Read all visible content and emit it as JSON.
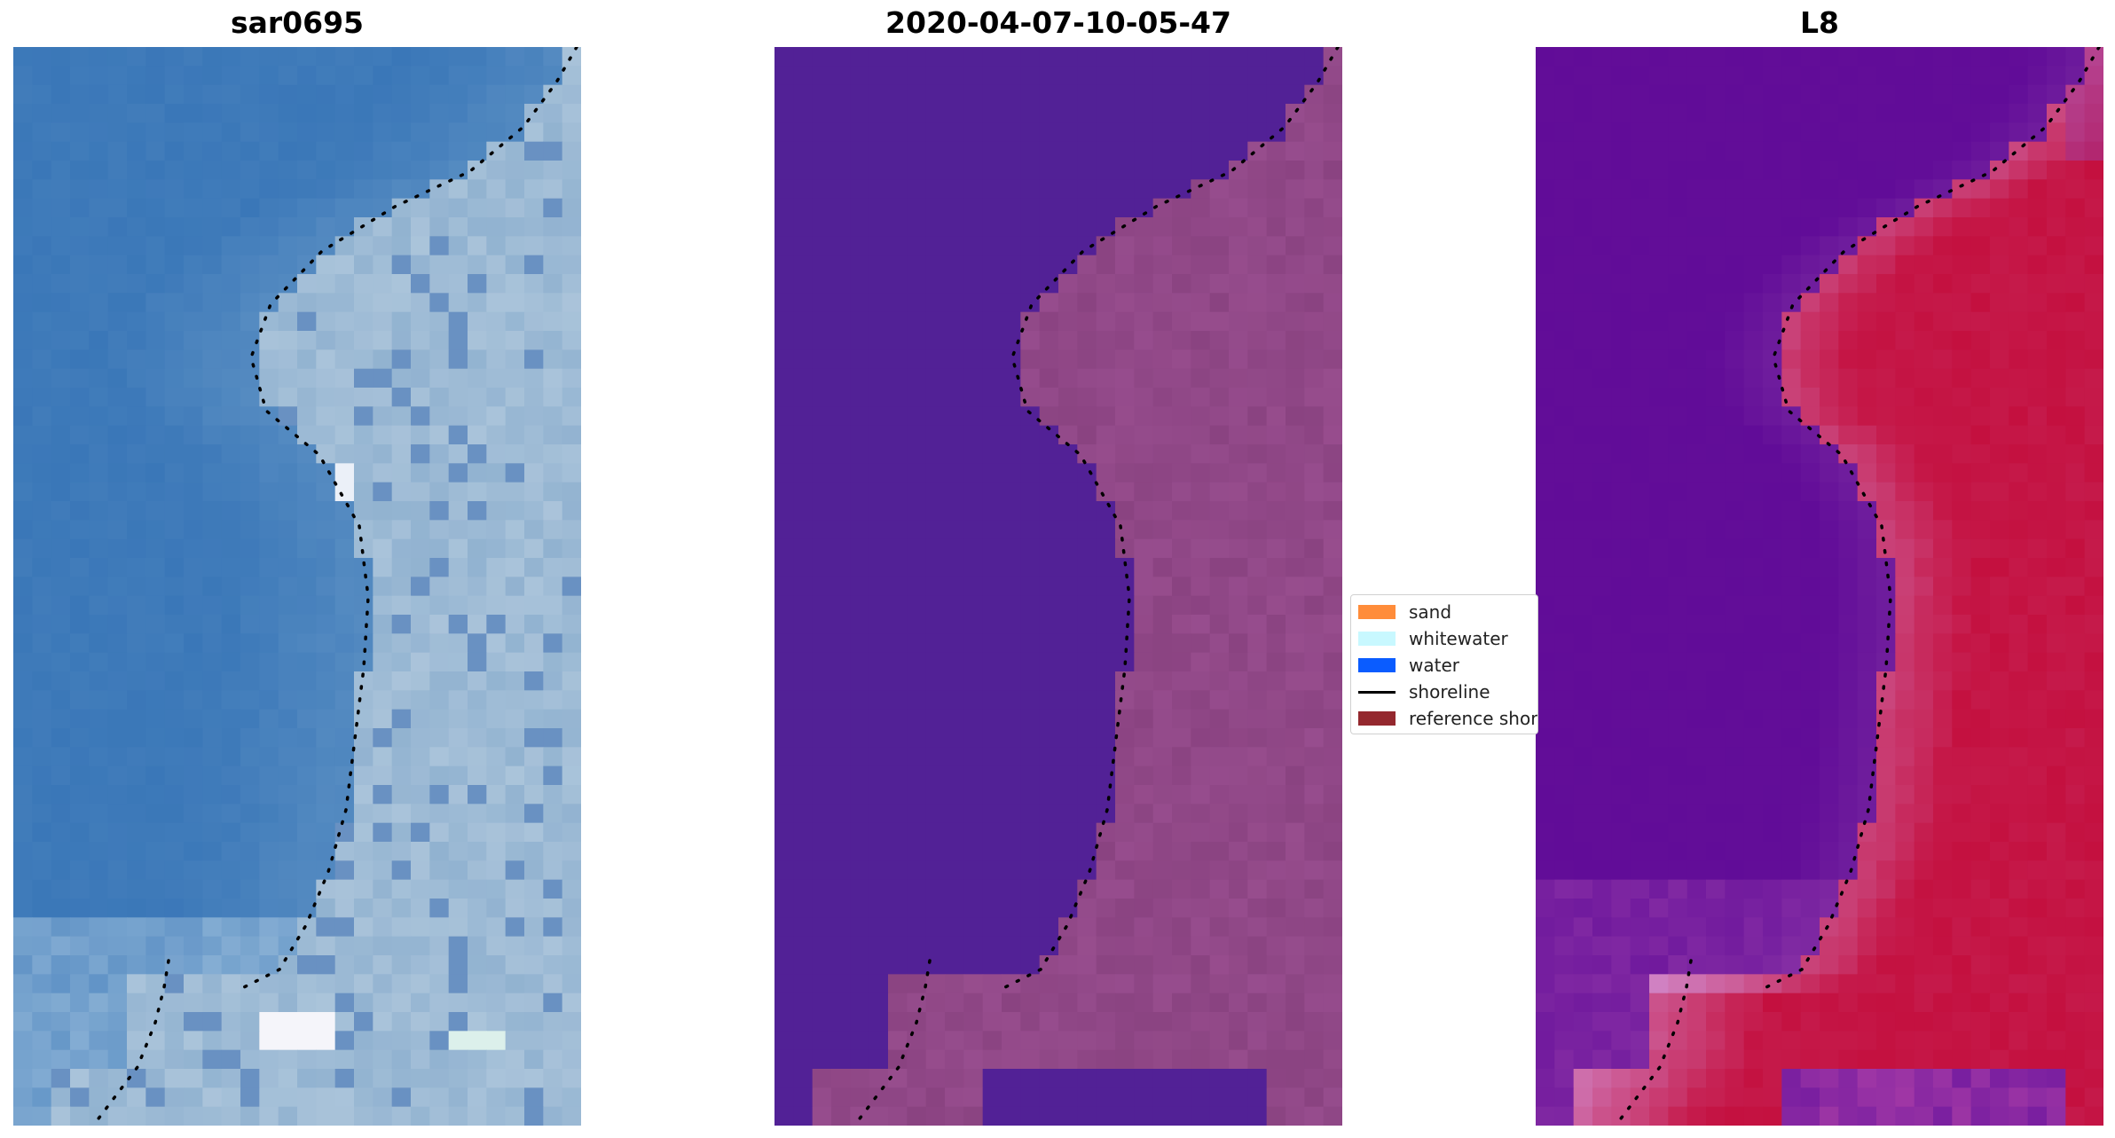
{
  "panels": [
    {
      "title": "sar0695",
      "palette": "rgb"
    },
    {
      "title": "2020-04-07-10-05-47",
      "palette": "class"
    },
    {
      "title": "L8",
      "palette": "index"
    }
  ],
  "legend": {
    "items": [
      {
        "label": "sand",
        "type": "patch",
        "color": "#ff8c3a"
      },
      {
        "label": "whitewater",
        "type": "patch",
        "color": "#c8f8ff"
      },
      {
        "label": "water",
        "type": "patch",
        "color": "#0a5cff"
      },
      {
        "label": "shoreline",
        "type": "line",
        "color": "#000000"
      },
      {
        "label": "reference shoreline",
        "type": "patch",
        "color": "#94282e"
      }
    ]
  },
  "colors": {
    "ocean_rgb": "#3a77b8",
    "land_rgb": "#8eb0cf",
    "class_water": "#522196",
    "class_land": "#8a4381",
    "index_water": "#610c98",
    "index_land": "#c4103f"
  }
}
